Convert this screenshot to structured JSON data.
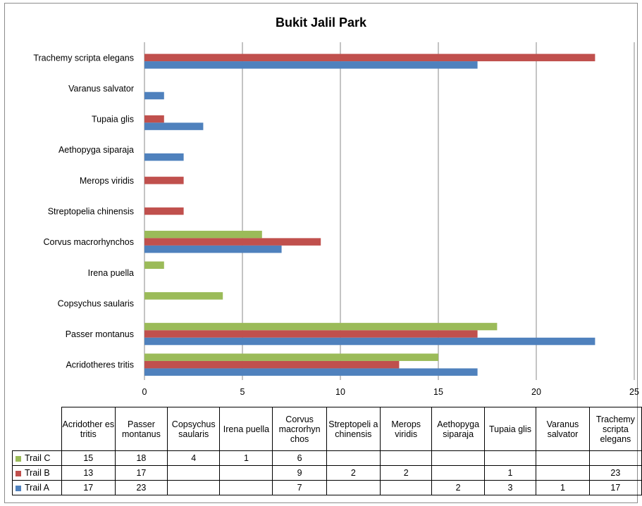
{
  "chart_data": {
    "type": "bar",
    "orientation": "horizontal",
    "title": "Bukit Jalil Park",
    "xlabel": "",
    "ylabel": "",
    "xlim": [
      0,
      25
    ],
    "xticks": [
      0,
      5,
      10,
      15,
      20,
      25
    ],
    "grid": true,
    "categories": [
      "Acridotheres tritis",
      "Passer montanus",
      "Copsychus saularis",
      "Irena puella",
      "Corvus macrorhynchos",
      "Streptopelia chinensis",
      "Merops viridis",
      "Aethopyga siparaja",
      "Tupaia glis",
      "Varanus salvator",
      "Trachemy scripta elegans"
    ],
    "table_headers": [
      "Acridother es tritis",
      "Passer montanus",
      "Copsychus saularis",
      "Irena puella",
      "Corvus macrorhyn chos",
      "Streptopeli a chinensis",
      "Merops viridis",
      "Aethopyga siparaja",
      "Tupaia glis",
      "Varanus salvator",
      "Trachemy scripta elegans"
    ],
    "series": [
      {
        "name": "Trail C",
        "color": "#9bbb59",
        "values": [
          15,
          18,
          4,
          1,
          6,
          null,
          null,
          null,
          null,
          null,
          null
        ]
      },
      {
        "name": "Trail B",
        "color": "#c0504d",
        "values": [
          13,
          17,
          null,
          null,
          9,
          2,
          2,
          null,
          1,
          null,
          23
        ]
      },
      {
        "name": "Trail A",
        "color": "#4f81bd",
        "values": [
          17,
          23,
          null,
          null,
          7,
          null,
          null,
          2,
          3,
          1,
          17
        ]
      }
    ]
  }
}
